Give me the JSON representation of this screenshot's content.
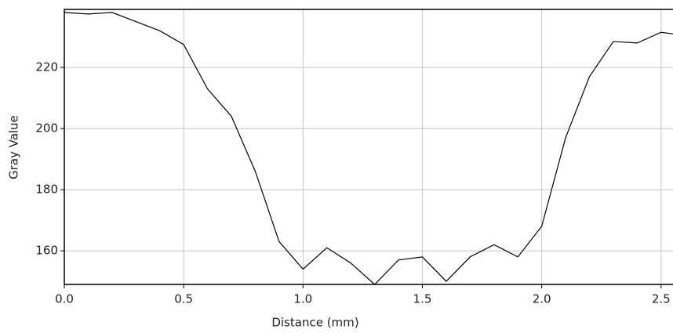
{
  "chart_data": {
    "type": "line",
    "x_label": "Distance (mm)",
    "y_label": "Gray Value",
    "x": [
      0.0,
      0.1,
      0.2,
      0.3,
      0.4,
      0.5,
      0.6,
      0.7,
      0.8,
      0.9,
      1.0,
      1.1,
      1.2,
      1.3,
      1.4,
      1.5,
      1.6,
      1.7,
      1.8,
      1.9,
      2.0,
      2.1,
      2.2,
      2.3,
      2.4,
      2.5,
      2.55
    ],
    "series": [
      {
        "color": "#000000",
        "values": [
          238,
          237.5,
          238,
          235,
          232,
          227.5,
          213,
          204,
          186,
          163,
          154,
          161,
          156,
          149,
          157,
          158,
          150,
          158,
          162,
          158,
          168,
          197,
          217,
          228.5,
          228,
          231.5,
          231
        ]
      }
    ],
    "xlim": [
      0,
      2.55
    ],
    "ylim": [
      149,
      239
    ],
    "xticks": [
      {
        "value": 0,
        "label": "0.0"
      },
      {
        "value": 0.5,
        "label": "0.5"
      },
      {
        "value": 1,
        "label": "1.0"
      },
      {
        "value": 1.5,
        "label": "1.5"
      },
      {
        "value": 2,
        "label": "2.0"
      },
      {
        "value": 2.5,
        "label": "2.5"
      }
    ],
    "yticks": [
      160,
      180,
      200,
      220
    ],
    "grid": true
  }
}
